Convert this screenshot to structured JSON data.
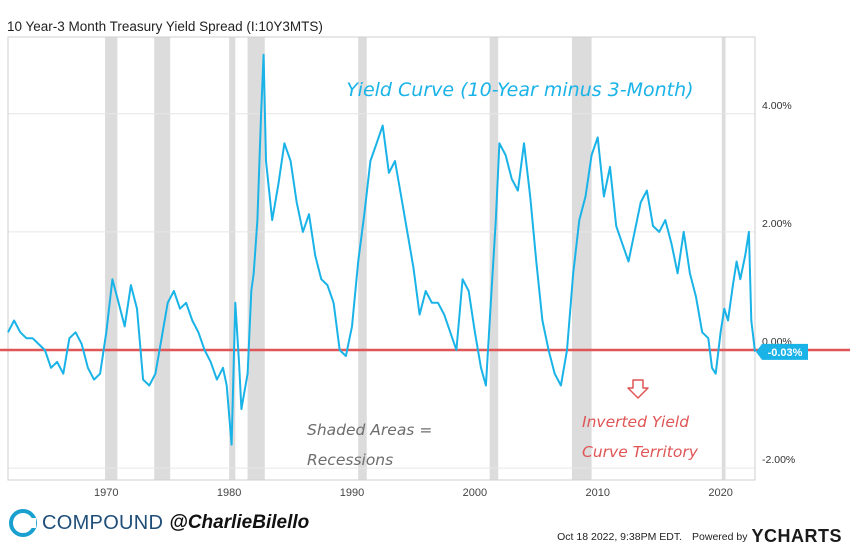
{
  "header": {
    "title": "10 Year-3 Month Treasury Yield Spread (I:10Y3MTS)"
  },
  "footer": {
    "brand": "COMPOUND",
    "handle": "@CharlieBilello",
    "timestamp": "Oct 18 2022, 9:38PM EDT.",
    "powered_by": "Powered by",
    "ycharts_logo": "YCHARTS"
  },
  "chart_data": {
    "type": "line",
    "title": "",
    "xlabel": "",
    "ylabel": "",
    "xlim": [
      1962.0,
      2022.8
    ],
    "ylim": [
      -2.2,
      5.3
    ],
    "x_ticks": [
      1970,
      1980,
      1990,
      2000,
      2010,
      2020
    ],
    "x_tick_labels": [
      "1970",
      "1980",
      "1990",
      "2000",
      "2010",
      "2020"
    ],
    "y_ticks": [
      -2,
      0,
      2,
      4
    ],
    "y_tick_labels": [
      "-2.00%",
      "0.00%",
      "2.00%",
      "4.00%"
    ],
    "grid": true,
    "line_color": "#1ab3e8",
    "series": [
      {
        "x": [
          1962.0,
          1962.5,
          1963.0,
          1963.5,
          1964.0,
          1964.5,
          1965.0,
          1965.5,
          1966.0,
          1966.5,
          1967.0,
          1967.5,
          1968.0,
          1968.5,
          1969.0,
          1969.5,
          1970.0,
          1970.5,
          1971.0,
          1971.5,
          1972.0,
          1972.5,
          1973.0,
          1973.5,
          1974.0,
          1974.5,
          1975.0,
          1975.5,
          1976.0,
          1976.5,
          1977.0,
          1977.5,
          1978.0,
          1978.5,
          1979.0,
          1979.5,
          1979.8,
          1980.2,
          1980.5,
          1980.8,
          1981.0,
          1981.5,
          1981.8,
          1982.0,
          1982.3,
          1982.6,
          1982.8,
          1983.0,
          1983.5,
          1984.0,
          1984.5,
          1985.0,
          1985.5,
          1986.0,
          1986.5,
          1987.0,
          1987.5,
          1988.0,
          1988.5,
          1989.0,
          1989.5,
          1990.0,
          1990.5,
          1991.0,
          1991.5,
          1992.0,
          1992.5,
          1993.0,
          1993.5,
          1994.0,
          1994.5,
          1995.0,
          1995.5,
          1996.0,
          1996.5,
          1997.0,
          1997.5,
          1998.0,
          1998.5,
          1999.0,
          1999.5,
          2000.0,
          2000.5,
          2000.9,
          2001.3,
          2001.7,
          2002.0,
          2002.5,
          2003.0,
          2003.5,
          2004.0,
          2004.5,
          2005.0,
          2005.5,
          2006.0,
          2006.5,
          2007.0,
          2007.5,
          2008.0,
          2008.5,
          2009.0,
          2009.5,
          2010.0,
          2010.5,
          2011.0,
          2011.5,
          2012.0,
          2012.5,
          2013.0,
          2013.5,
          2014.0,
          2014.5,
          2015.0,
          2015.5,
          2016.0,
          2016.5,
          2017.0,
          2017.5,
          2018.0,
          2018.5,
          2019.0,
          2019.3,
          2019.6,
          2020.0,
          2020.3,
          2020.6,
          2021.0,
          2021.3,
          2021.6,
          2022.0,
          2022.3,
          2022.5,
          2022.8
        ],
        "values": [
          0.3,
          0.5,
          0.3,
          0.2,
          0.2,
          0.1,
          0.0,
          -0.3,
          -0.2,
          -0.4,
          0.2,
          0.3,
          0.1,
          -0.3,
          -0.5,
          -0.4,
          0.3,
          1.2,
          0.8,
          0.4,
          1.1,
          0.7,
          -0.5,
          -0.6,
          -0.4,
          0.2,
          0.8,
          1.0,
          0.7,
          0.8,
          0.5,
          0.3,
          0.0,
          -0.2,
          -0.5,
          -0.3,
          -0.6,
          -1.6,
          0.8,
          -0.2,
          -1.0,
          -0.4,
          1.0,
          1.3,
          2.2,
          4.0,
          5.0,
          3.2,
          2.2,
          2.8,
          3.5,
          3.2,
          2.5,
          2.0,
          2.3,
          1.6,
          1.2,
          1.1,
          0.8,
          0.0,
          -0.1,
          0.4,
          1.5,
          2.3,
          3.2,
          3.5,
          3.8,
          3.0,
          3.2,
          2.6,
          2.0,
          1.4,
          0.6,
          1.0,
          0.8,
          0.8,
          0.6,
          0.3,
          0.0,
          1.2,
          1.0,
          0.3,
          -0.3,
          -0.6,
          0.8,
          2.2,
          3.5,
          3.3,
          2.9,
          2.7,
          3.5,
          2.6,
          1.5,
          0.5,
          0.0,
          -0.4,
          -0.6,
          0.0,
          1.3,
          2.2,
          2.6,
          3.3,
          3.6,
          2.6,
          3.1,
          2.1,
          1.8,
          1.5,
          2.0,
          2.5,
          2.7,
          2.1,
          2.0,
          2.2,
          1.8,
          1.3,
          2.0,
          1.3,
          0.9,
          0.3,
          0.2,
          -0.3,
          -0.4,
          0.3,
          0.7,
          0.5,
          1.1,
          1.5,
          1.2,
          1.6,
          2.0,
          0.5,
          -0.03
        ]
      }
    ],
    "last_value_label": "-0.03%",
    "reference_line": {
      "value": 0,
      "color": "#e05555"
    },
    "recession_bands": [
      [
        1969.9,
        1970.9
      ],
      [
        1973.9,
        1975.2
      ],
      [
        1980.0,
        1980.5
      ],
      [
        1981.5,
        1982.9
      ],
      [
        1990.5,
        1991.2
      ],
      [
        2001.2,
        2001.9
      ],
      [
        2007.9,
        2009.5
      ],
      [
        2020.1,
        2020.4
      ]
    ],
    "annotations": {
      "headline": "Yield Curve (10-Year minus 3-Month)",
      "shaded_note_line1": "Shaded Areas =",
      "shaded_note_line2": "Recessions",
      "inverted_line1": "Inverted Yield",
      "inverted_line2": "Curve Territory"
    }
  }
}
